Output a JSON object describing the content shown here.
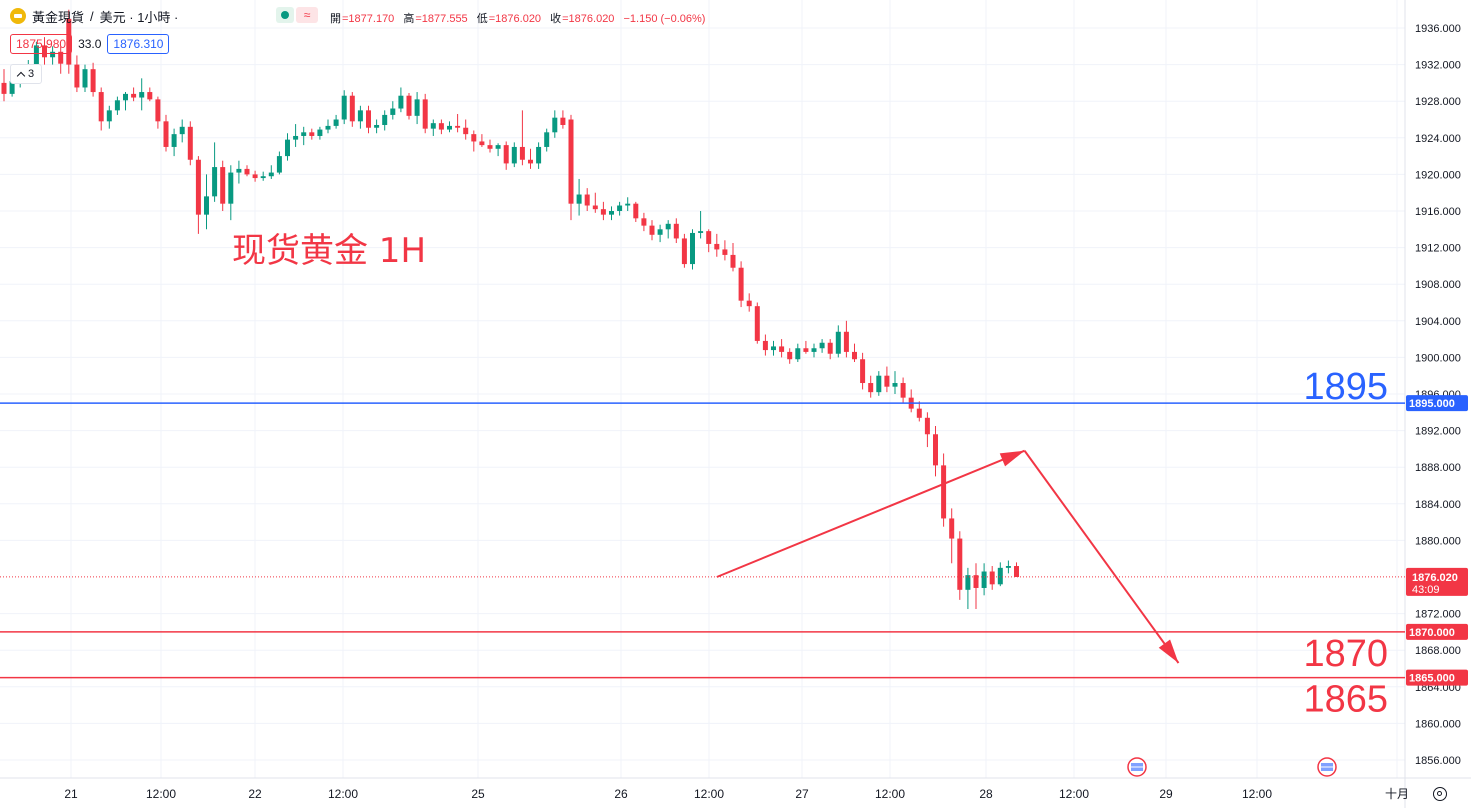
{
  "header": {
    "symbol_title": "黃金現貨",
    "separator": "/",
    "suffix": "美元 · 1小時 ·",
    "ohlc": {
      "open_label": "開",
      "open": "=1877.170",
      "high_label": "高",
      "high": "=1877.555",
      "low_label": "低",
      "low": "=1876.020",
      "close_label": "收",
      "close": "=1876.020",
      "change": "−1.150 (−0.06%)"
    },
    "bid_price": "1875.980",
    "spread": "33.0",
    "ask_price": "1876.310",
    "indicator_count": "3"
  },
  "colors": {
    "up": "#089981",
    "down": "#f23645",
    "blue_line": "#2962ff",
    "red_line": "#f23645",
    "grid": "#f0f3fa",
    "text": "#131722"
  },
  "chart_data": {
    "type": "candlestick",
    "title": "现货黄金 1H",
    "ylim": [
      1854,
      1940
    ],
    "y_ticks": [
      "1936.000",
      "1932.000",
      "1928.000",
      "1924.000",
      "1920.000",
      "1916.000",
      "1912.000",
      "1908.000",
      "1904.000",
      "1900.000",
      "1896.000",
      "1892.000",
      "1888.000",
      "1884.000",
      "1880.000",
      "1872.000",
      "1868.000",
      "1864.000",
      "1860.000",
      "1856.000"
    ],
    "x_ticks": [
      "21",
      "12:00",
      "22",
      "12:00",
      "25",
      "26",
      "12:00",
      "27",
      "12:00",
      "28",
      "12:00",
      "29",
      "12:00",
      "十月"
    ],
    "current_price": "1876.020",
    "countdown": "43:09",
    "horizontal_lines": [
      {
        "price": 1895,
        "label": "1895",
        "axis_label": "1895.000",
        "color": "blue"
      },
      {
        "price": 1870,
        "label": "1870",
        "axis_label": "1870.000",
        "color": "red"
      },
      {
        "price": 1865,
        "label": "1865",
        "axis_label": "1865.000",
        "color": "red"
      }
    ],
    "projection_path": [
      {
        "x_index": 88,
        "price": 1876.0
      },
      {
        "x_index": 126,
        "price": 1889.8
      },
      {
        "x_index": 145,
        "price": 1866.6
      }
    ],
    "candles": [
      [
        1930.0,
        1931.5,
        1928.0,
        1928.8
      ],
      [
        1928.8,
        1930.5,
        1928.5,
        1930.2
      ],
      [
        1930.2,
        1932.0,
        1929.5,
        1931.0
      ],
      [
        1931.0,
        1932.5,
        1930.5,
        1931.4
      ],
      [
        1931.4,
        1934.5,
        1930.6,
        1934.1
      ],
      [
        1934.1,
        1935.0,
        1932.0,
        1932.8
      ],
      [
        1932.8,
        1934.0,
        1932.0,
        1933.4
      ],
      [
        1933.4,
        1934.0,
        1931.0,
        1932.1
      ],
      [
        1937.0,
        1938.0,
        1931.0,
        1932.0
      ],
      [
        1932.0,
        1933.0,
        1929.0,
        1929.5
      ],
      [
        1929.5,
        1932.0,
        1929.0,
        1931.5
      ],
      [
        1931.5,
        1932.2,
        1928.5,
        1929.0
      ],
      [
        1929.0,
        1929.5,
        1924.8,
        1925.8
      ],
      [
        1925.8,
        1927.5,
        1925.0,
        1927.0
      ],
      [
        1927.0,
        1928.5,
        1926.5,
        1928.1
      ],
      [
        1928.1,
        1929.0,
        1927.0,
        1928.8
      ],
      [
        1928.8,
        1929.5,
        1928.0,
        1928.4
      ],
      [
        1928.4,
        1930.5,
        1927.0,
        1929.0
      ],
      [
        1929.0,
        1929.5,
        1928.0,
        1928.2
      ],
      [
        1928.2,
        1928.5,
        1925.0,
        1925.8
      ],
      [
        1925.8,
        1926.5,
        1922.5,
        1923.0
      ],
      [
        1923.0,
        1925.0,
        1922.0,
        1924.4
      ],
      [
        1924.4,
        1926.0,
        1923.5,
        1925.2
      ],
      [
        1925.2,
        1925.8,
        1921.0,
        1921.6
      ],
      [
        1921.6,
        1922.0,
        1913.5,
        1915.6
      ],
      [
        1915.6,
        1920.0,
        1914.0,
        1917.6
      ],
      [
        1917.6,
        1923.5,
        1917.0,
        1920.8
      ],
      [
        1920.8,
        1921.5,
        1916.0,
        1916.8
      ],
      [
        1916.8,
        1921.0,
        1915.0,
        1920.2
      ],
      [
        1920.2,
        1921.5,
        1919.0,
        1920.6
      ],
      [
        1920.6,
        1921.0,
        1919.8,
        1920.0
      ],
      [
        1920.0,
        1920.4,
        1919.2,
        1919.6
      ],
      [
        1919.6,
        1920.3,
        1919.3,
        1919.8
      ],
      [
        1919.8,
        1921.0,
        1919.5,
        1920.2
      ],
      [
        1920.2,
        1922.5,
        1920.0,
        1922.0
      ],
      [
        1922.0,
        1924.5,
        1921.5,
        1923.8
      ],
      [
        1923.8,
        1925.5,
        1923.0,
        1924.2
      ],
      [
        1924.2,
        1925.2,
        1923.2,
        1924.6
      ],
      [
        1924.6,
        1925.0,
        1923.8,
        1924.2
      ],
      [
        1924.2,
        1925.2,
        1923.8,
        1924.9
      ],
      [
        1924.9,
        1926.0,
        1924.5,
        1925.3
      ],
      [
        1925.3,
        1926.5,
        1925.0,
        1926.0
      ],
      [
        1926.0,
        1929.2,
        1925.5,
        1928.6
      ],
      [
        1928.6,
        1929.0,
        1925.2,
        1925.8
      ],
      [
        1925.8,
        1927.5,
        1925.0,
        1927.0
      ],
      [
        1927.0,
        1927.5,
        1924.5,
        1925.1
      ],
      [
        1925.1,
        1926.0,
        1924.5,
        1925.4
      ],
      [
        1925.4,
        1927.0,
        1924.8,
        1926.5
      ],
      [
        1926.5,
        1928.0,
        1926.0,
        1927.2
      ],
      [
        1927.2,
        1929.5,
        1926.8,
        1928.6
      ],
      [
        1928.6,
        1928.9,
        1926.0,
        1926.4
      ],
      [
        1926.4,
        1929.0,
        1925.5,
        1928.2
      ],
      [
        1928.2,
        1928.8,
        1924.5,
        1925.0
      ],
      [
        1925.0,
        1926.0,
        1924.2,
        1925.6
      ],
      [
        1925.6,
        1926.0,
        1924.4,
        1924.9
      ],
      [
        1924.9,
        1925.8,
        1924.6,
        1925.3
      ],
      [
        1925.3,
        1926.6,
        1924.6,
        1925.1
      ],
      [
        1925.1,
        1926.0,
        1923.8,
        1924.4
      ],
      [
        1924.4,
        1924.8,
        1922.5,
        1923.6
      ],
      [
        1923.6,
        1924.4,
        1923.0,
        1923.2
      ],
      [
        1923.2,
        1923.8,
        1922.4,
        1922.8
      ],
      [
        1922.8,
        1923.4,
        1922.0,
        1923.2
      ],
      [
        1923.2,
        1923.6,
        1920.5,
        1921.2
      ],
      [
        1921.2,
        1923.5,
        1920.8,
        1923.0
      ],
      [
        1923.0,
        1927.0,
        1921.0,
        1921.6
      ],
      [
        1921.6,
        1922.8,
        1920.6,
        1921.2
      ],
      [
        1921.2,
        1923.5,
        1920.6,
        1923.0
      ],
      [
        1923.0,
        1925.0,
        1922.5,
        1924.6
      ],
      [
        1924.6,
        1927.0,
        1924.0,
        1926.2
      ],
      [
        1926.2,
        1927.0,
        1925.0,
        1925.4
      ],
      [
        1926.0,
        1926.5,
        1915.0,
        1916.8
      ],
      [
        1916.8,
        1919.5,
        1915.5,
        1917.8
      ],
      [
        1917.8,
        1918.5,
        1916.0,
        1916.6
      ],
      [
        1916.6,
        1918.0,
        1915.8,
        1916.2
      ],
      [
        1916.2,
        1917.0,
        1915.0,
        1915.6
      ],
      [
        1915.6,
        1916.5,
        1915.0,
        1916.0
      ],
      [
        1916.0,
        1917.0,
        1915.5,
        1916.6
      ],
      [
        1916.6,
        1917.5,
        1916.0,
        1916.8
      ],
      [
        1916.8,
        1917.0,
        1914.8,
        1915.2
      ],
      [
        1915.2,
        1915.8,
        1913.8,
        1914.4
      ],
      [
        1914.4,
        1915.0,
        1912.8,
        1913.4
      ],
      [
        1913.4,
        1914.5,
        1912.6,
        1914.0
      ],
      [
        1914.0,
        1915.0,
        1913.0,
        1914.6
      ],
      [
        1914.6,
        1915.2,
        1912.5,
        1913.0
      ],
      [
        1913.0,
        1913.5,
        1909.8,
        1910.2
      ],
      [
        1910.2,
        1914.0,
        1909.6,
        1913.6
      ],
      [
        1913.6,
        1916.0,
        1913.0,
        1913.8
      ],
      [
        1913.8,
        1914.0,
        1911.5,
        1912.4
      ],
      [
        1912.4,
        1913.5,
        1911.0,
        1911.8
      ],
      [
        1911.8,
        1912.8,
        1910.6,
        1911.2
      ],
      [
        1911.2,
        1912.5,
        1909.4,
        1909.8
      ],
      [
        1909.8,
        1910.5,
        1905.5,
        1906.2
      ],
      [
        1906.2,
        1907.0,
        1905.0,
        1905.6
      ],
      [
        1905.6,
        1906.0,
        1901.5,
        1901.8
      ],
      [
        1901.8,
        1902.5,
        1900.2,
        1900.8
      ],
      [
        1900.8,
        1901.8,
        1900.2,
        1901.2
      ],
      [
        1901.2,
        1902.0,
        1900.0,
        1900.6
      ],
      [
        1900.6,
        1901.0,
        1899.3,
        1899.8
      ],
      [
        1899.8,
        1901.5,
        1899.5,
        1901.0
      ],
      [
        1901.0,
        1901.8,
        1900.4,
        1900.6
      ],
      [
        1900.6,
        1901.5,
        1900.0,
        1901.0
      ],
      [
        1901.0,
        1902.0,
        1900.5,
        1901.6
      ],
      [
        1901.6,
        1902.0,
        1899.8,
        1900.4
      ],
      [
        1900.4,
        1903.5,
        1900.0,
        1902.8
      ],
      [
        1902.8,
        1904.0,
        1900.0,
        1900.6
      ],
      [
        1900.6,
        1901.5,
        1899.5,
        1899.8
      ],
      [
        1899.8,
        1900.5,
        1896.5,
        1897.2
      ],
      [
        1897.2,
        1898.0,
        1895.6,
        1896.2
      ],
      [
        1896.2,
        1898.5,
        1895.8,
        1898.0
      ],
      [
        1898.0,
        1899.0,
        1896.2,
        1896.8
      ],
      [
        1896.8,
        1898.5,
        1896.0,
        1897.2
      ],
      [
        1897.2,
        1897.8,
        1895.0,
        1895.6
      ],
      [
        1895.6,
        1896.5,
        1894.0,
        1894.4
      ],
      [
        1894.4,
        1895.2,
        1893.0,
        1893.4
      ],
      [
        1893.4,
        1894.0,
        1890.2,
        1891.6
      ],
      [
        1891.6,
        1892.5,
        1887.0,
        1888.2
      ],
      [
        1888.2,
        1889.5,
        1881.5,
        1882.4
      ],
      [
        1882.4,
        1883.5,
        1877.5,
        1880.2
      ],
      [
        1880.2,
        1881.0,
        1873.5,
        1874.6
      ],
      [
        1874.6,
        1877.0,
        1872.5,
        1876.2
      ],
      [
        1876.2,
        1877.5,
        1872.5,
        1874.8
      ],
      [
        1874.8,
        1877.5,
        1874.0,
        1876.6
      ],
      [
        1876.6,
        1877.2,
        1874.6,
        1875.2
      ],
      [
        1875.2,
        1877.6,
        1875.0,
        1877.0
      ],
      [
        1877.0,
        1877.8,
        1876.4,
        1877.2
      ],
      [
        1877.2,
        1877.6,
        1876.0,
        1876.0
      ]
    ]
  }
}
